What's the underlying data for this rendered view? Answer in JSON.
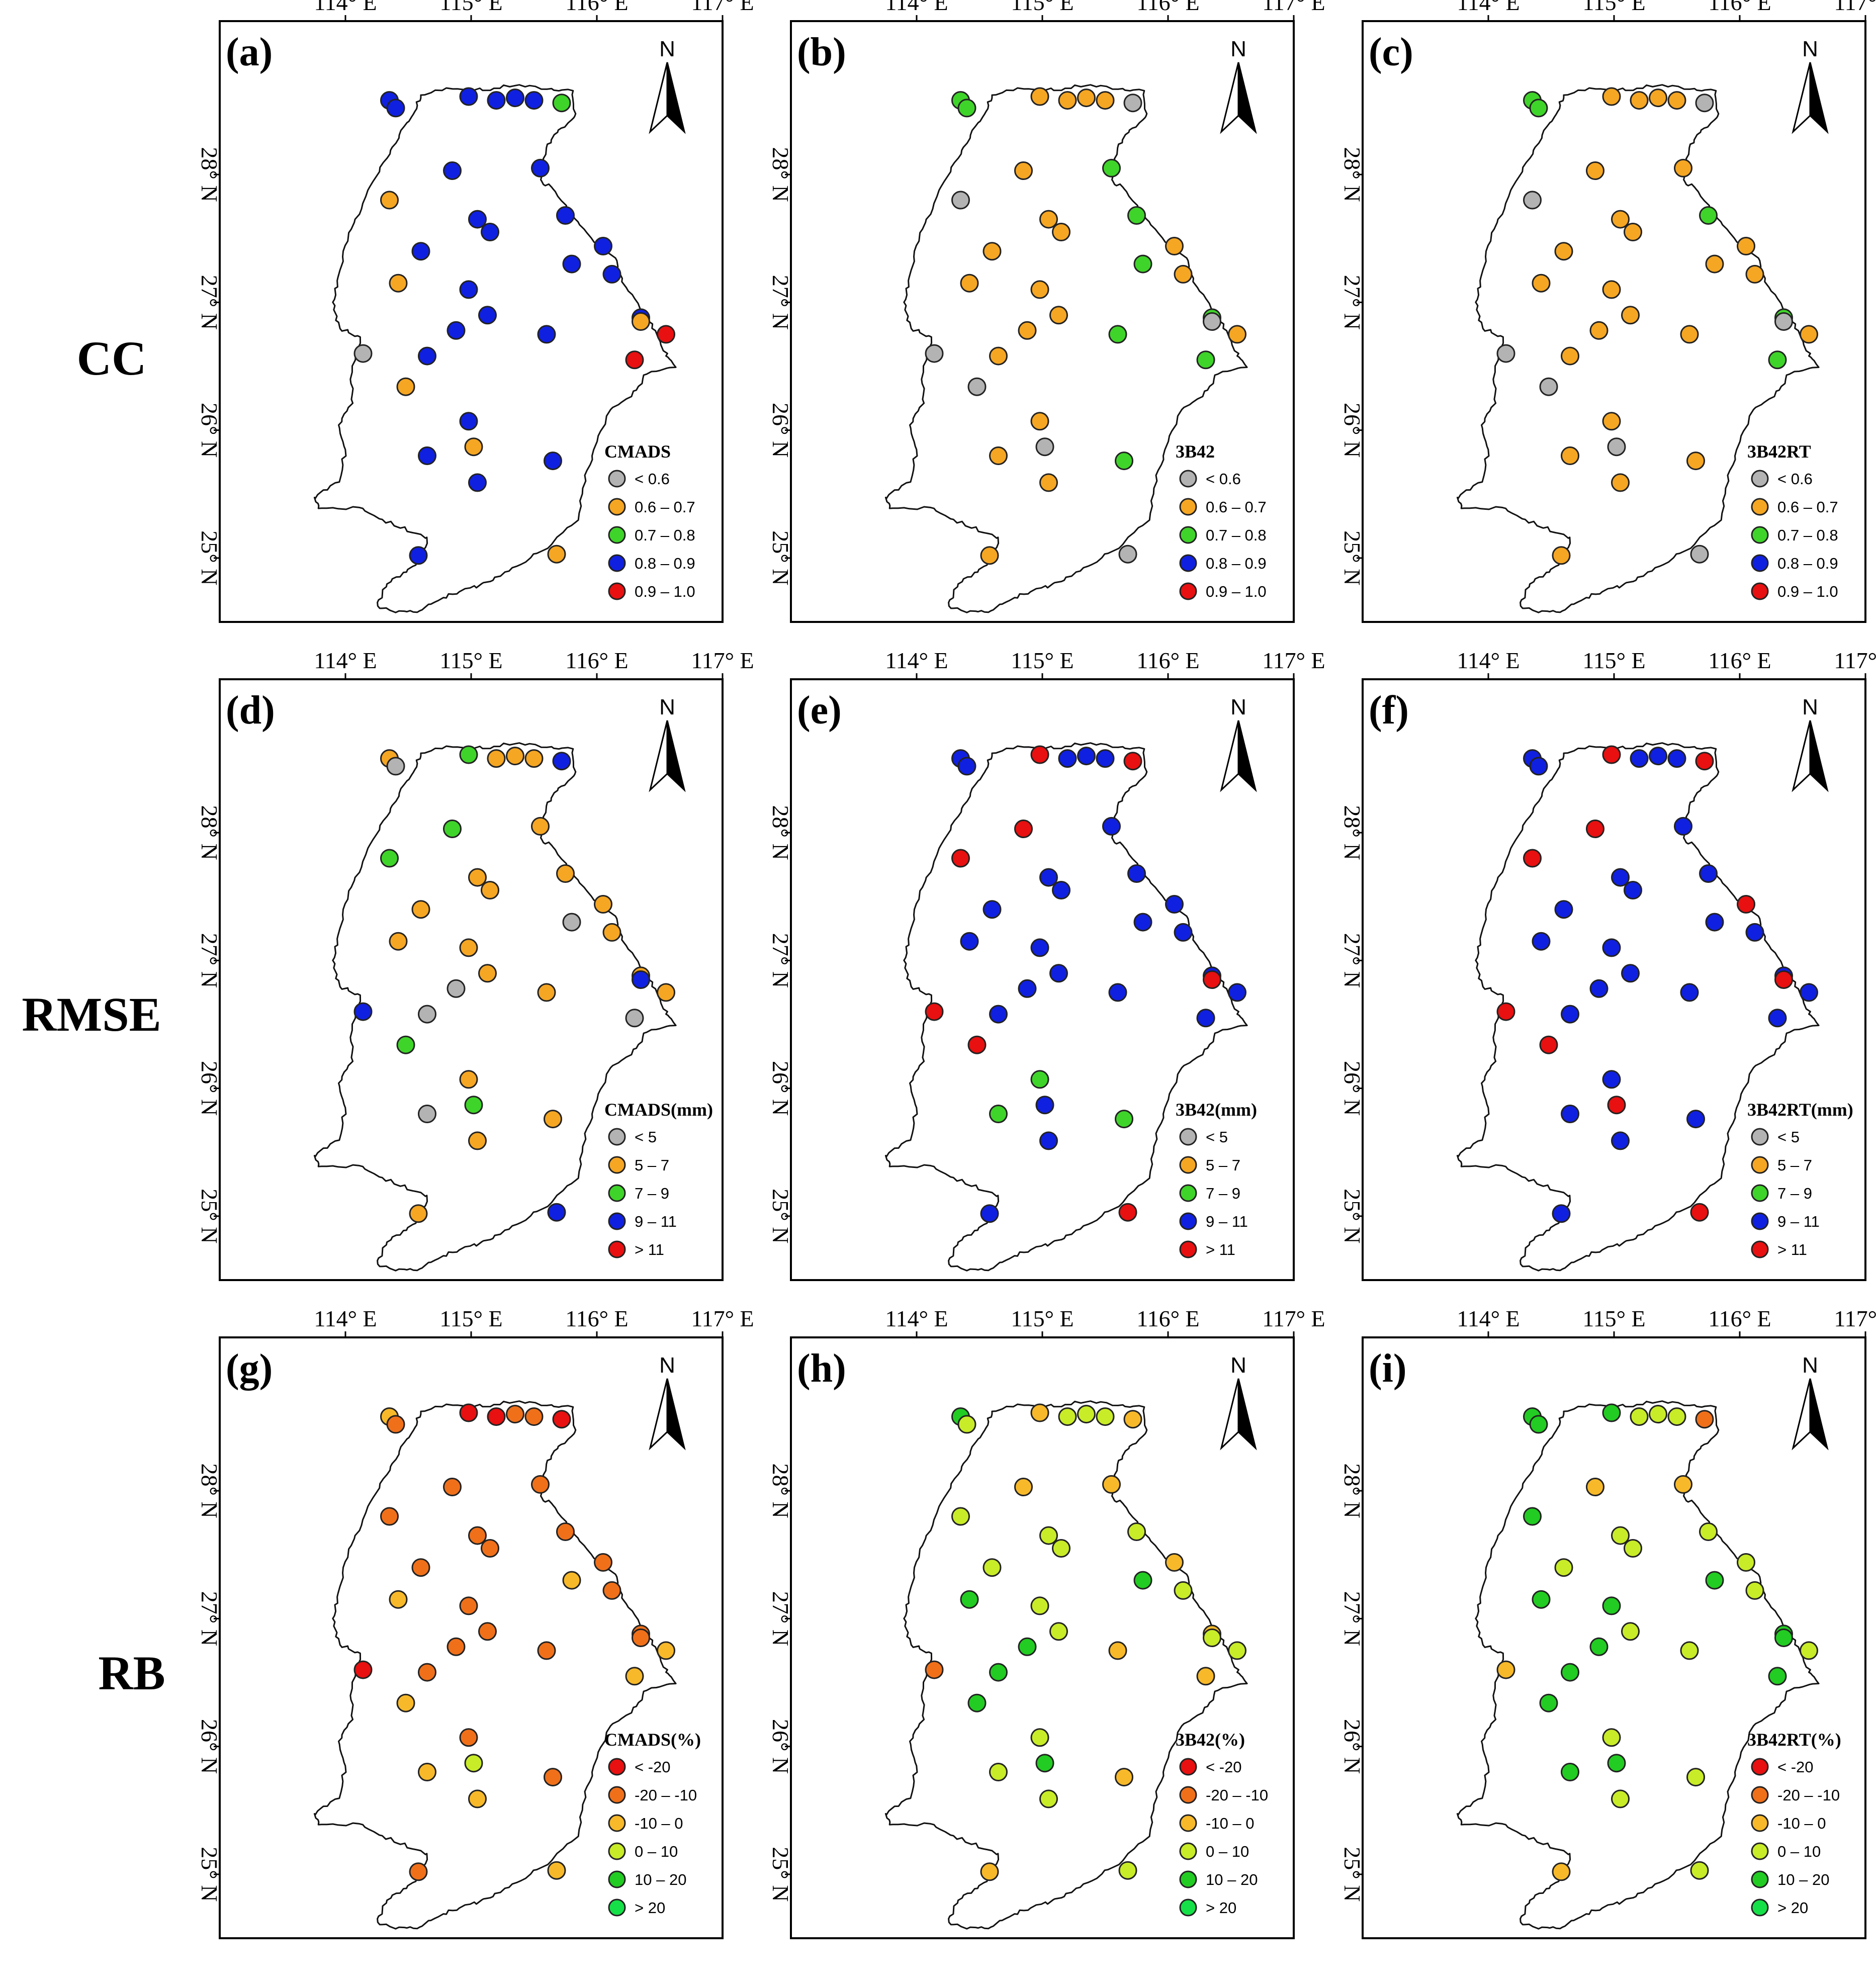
{
  "figure": {
    "row_labels": [
      "CC",
      "RMSE",
      "RB"
    ],
    "lon_ticks": [
      "114° E",
      "115° E",
      "116° E",
      "117° E"
    ],
    "lat_ticks": [
      "28° N",
      "27° N",
      "26° N",
      "25° N"
    ],
    "north_label": "N"
  },
  "legends": {
    "cc": {
      "items": [
        "< 0.6",
        "0.6 – 0.7",
        "0.7 – 0.8",
        "0.8 – 0.9",
        "0.9 – 1.0"
      ],
      "colors": [
        "#b3b3b3",
        "#f5a623",
        "#3fd42a",
        "#1020e0",
        "#e81010"
      ]
    },
    "rmse": {
      "items": [
        "< 5",
        "5 – 7",
        "7 – 9",
        "9 – 11",
        "> 11"
      ],
      "colors": [
        "#b3b3b3",
        "#f5a623",
        "#3fd42a",
        "#1020e0",
        "#e81010"
      ]
    },
    "rb": {
      "items": [
        "< -20",
        "-20 – -10",
        "-10 – 0",
        "0 – 10",
        "10 – 20",
        "> 20"
      ],
      "colors": [
        "#e81010",
        "#f0701a",
        "#f7b92a",
        "#c8ec28",
        "#22cc22",
        "#16e048"
      ]
    }
  },
  "stations": [
    [
      114.35,
      28.58
    ],
    [
      114.4,
      28.52
    ],
    [
      114.35,
      27.8
    ],
    [
      114.42,
      27.15
    ],
    [
      114.6,
      27.4
    ],
    [
      114.85,
      28.03
    ],
    [
      114.98,
      28.61
    ],
    [
      115.2,
      28.58
    ],
    [
      115.35,
      28.6
    ],
    [
      115.5,
      28.58
    ],
    [
      115.72,
      28.56
    ],
    [
      115.55,
      28.05
    ],
    [
      115.05,
      27.65
    ],
    [
      115.15,
      27.55
    ],
    [
      114.65,
      26.58
    ],
    [
      114.88,
      26.78
    ],
    [
      114.98,
      27.1
    ],
    [
      115.13,
      26.9
    ],
    [
      115.75,
      27.68
    ],
    [
      115.8,
      27.3
    ],
    [
      116.05,
      27.44
    ],
    [
      116.12,
      27.22
    ],
    [
      116.35,
      26.88
    ],
    [
      116.35,
      26.85
    ],
    [
      116.55,
      26.75
    ],
    [
      116.3,
      26.55
    ],
    [
      115.6,
      26.75
    ],
    [
      114.14,
      26.6
    ],
    [
      114.48,
      26.34
    ],
    [
      114.65,
      25.8
    ],
    [
      114.98,
      26.07
    ],
    [
      115.02,
      25.87
    ],
    [
      115.05,
      25.59
    ],
    [
      115.65,
      25.76
    ],
    [
      115.68,
      25.03
    ],
    [
      114.58,
      25.02
    ]
  ],
  "panels": [
    {
      "id": "a",
      "label": "(a)",
      "legend_type": "cc",
      "legend_title": "CMADS",
      "classes": [
        3,
        3,
        1,
        1,
        3,
        3,
        3,
        3,
        3,
        3,
        2,
        3,
        3,
        3,
        3,
        3,
        3,
        3,
        3,
        3,
        3,
        3,
        3,
        1,
        4,
        4,
        3,
        0,
        1,
        3,
        3,
        1,
        3,
        3,
        1,
        3
      ]
    },
    {
      "id": "b",
      "label": "(b)",
      "legend_type": "cc",
      "legend_title": "3B42",
      "classes": [
        2,
        2,
        0,
        1,
        1,
        1,
        1,
        1,
        1,
        1,
        0,
        2,
        1,
        1,
        1,
        1,
        1,
        1,
        2,
        2,
        1,
        1,
        2,
        0,
        1,
        2,
        2,
        0,
        0,
        1,
        1,
        0,
        1,
        2,
        0,
        1
      ]
    },
    {
      "id": "c",
      "label": "(c)",
      "legend_type": "cc",
      "legend_title": "3B42RT",
      "classes": [
        2,
        2,
        0,
        1,
        1,
        1,
        1,
        1,
        1,
        1,
        0,
        1,
        1,
        1,
        1,
        1,
        1,
        1,
        2,
        1,
        1,
        1,
        2,
        0,
        1,
        2,
        1,
        0,
        0,
        1,
        1,
        0,
        1,
        1,
        0,
        1
      ]
    },
    {
      "id": "d",
      "label": "(d)",
      "legend_type": "rmse",
      "legend_title": "CMADS(mm)",
      "classes": [
        1,
        0,
        2,
        1,
        1,
        2,
        2,
        1,
        1,
        1,
        3,
        1,
        1,
        1,
        0,
        0,
        1,
        1,
        1,
        0,
        1,
        1,
        1,
        3,
        1,
        0,
        1,
        3,
        2,
        0,
        1,
        2,
        1,
        1,
        3,
        1
      ]
    },
    {
      "id": "e",
      "label": "(e)",
      "legend_type": "rmse",
      "legend_title": "3B42(mm)",
      "classes": [
        3,
        3,
        4,
        3,
        3,
        4,
        4,
        3,
        3,
        3,
        4,
        3,
        3,
        3,
        3,
        3,
        3,
        3,
        3,
        3,
        3,
        3,
        3,
        4,
        3,
        3,
        3,
        4,
        4,
        2,
        2,
        3,
        3,
        2,
        4,
        3
      ]
    },
    {
      "id": "f",
      "label": "(f)",
      "legend_type": "rmse",
      "legend_title": "3B42RT(mm)",
      "classes": [
        3,
        3,
        4,
        3,
        3,
        4,
        4,
        3,
        3,
        3,
        4,
        3,
        3,
        3,
        3,
        3,
        3,
        3,
        3,
        3,
        4,
        3,
        3,
        4,
        3,
        3,
        3,
        4,
        4,
        3,
        3,
        4,
        3,
        3,
        4,
        3
      ]
    },
    {
      "id": "g",
      "label": "(g)",
      "legend_type": "rb",
      "legend_title": "CMADS(%)",
      "classes": [
        2,
        1,
        1,
        2,
        1,
        1,
        0,
        0,
        1,
        1,
        0,
        1,
        1,
        1,
        1,
        1,
        1,
        1,
        1,
        2,
        1,
        1,
        1,
        1,
        2,
        2,
        1,
        0,
        2,
        2,
        1,
        3,
        2,
        1,
        2,
        1
      ]
    },
    {
      "id": "h",
      "label": "(h)",
      "legend_type": "rb",
      "legend_title": "3B42(%)",
      "classes": [
        4,
        3,
        3,
        4,
        3,
        2,
        2,
        3,
        3,
        3,
        2,
        2,
        3,
        3,
        4,
        4,
        3,
        3,
        3,
        4,
        2,
        3,
        2,
        3,
        3,
        2,
        2,
        1,
        4,
        3,
        3,
        4,
        3,
        2,
        3,
        2
      ]
    },
    {
      "id": "i",
      "label": "(i)",
      "legend_type": "rb",
      "legend_title": "3B42RT(%)",
      "classes": [
        4,
        4,
        4,
        4,
        3,
        2,
        4,
        3,
        3,
        3,
        1,
        2,
        3,
        3,
        4,
        4,
        4,
        3,
        3,
        4,
        3,
        3,
        4,
        4,
        3,
        4,
        3,
        2,
        4,
        4,
        3,
        4,
        3,
        3,
        3,
        2
      ]
    }
  ]
}
